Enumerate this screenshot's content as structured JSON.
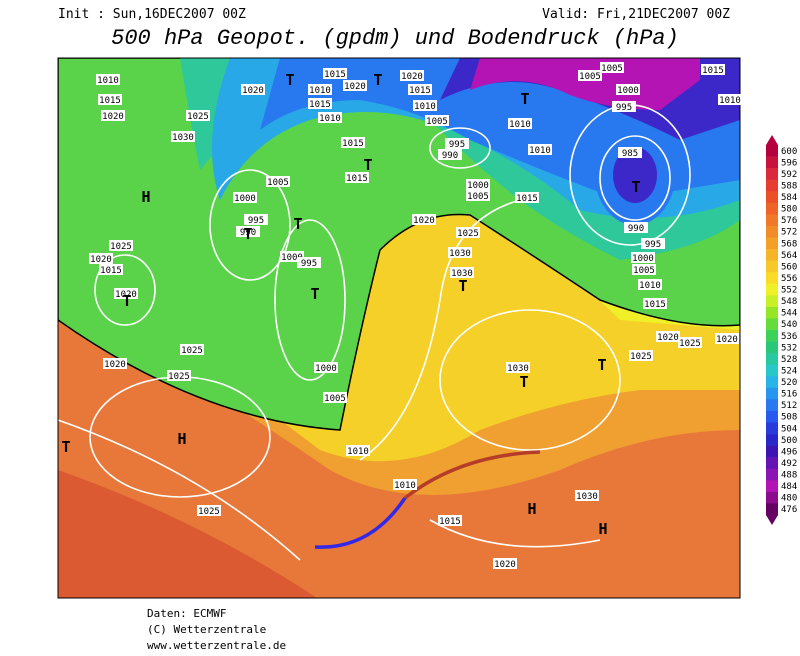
{
  "header": {
    "init": "Init : Sun,16DEC2007 00Z",
    "valid": "Valid: Fri,21DEC2007 00Z",
    "title": "500 hPa Geopot. (gpdm) und Bodendruck (hPa)"
  },
  "legend": {
    "levels": [
      600,
      596,
      592,
      588,
      584,
      580,
      576,
      572,
      568,
      564,
      560,
      556,
      552,
      548,
      544,
      540,
      536,
      532,
      528,
      524,
      520,
      516,
      512,
      508,
      504,
      500,
      496,
      492,
      488,
      484,
      480,
      476
    ],
    "colors": [
      "#b4003c",
      "#c8143c",
      "#dc283c",
      "#e63c32",
      "#eb5028",
      "#ee6428",
      "#f07828",
      "#f28c28",
      "#f4a028",
      "#f6b428",
      "#f8c828",
      "#fadc28",
      "#f0f028",
      "#c8f028",
      "#96e628",
      "#64dc3c",
      "#3cd25a",
      "#28c878",
      "#28c8a0",
      "#28c8c8",
      "#28b4e6",
      "#2896f0",
      "#2878f0",
      "#285af0",
      "#283cdc",
      "#2828c8",
      "#3c14b4",
      "#6414b4",
      "#8c14b4",
      "#b414b4",
      "#8c0a8c",
      "#640064"
    ]
  },
  "isobars": [
    1010,
    1015,
    1020,
    1020,
    1025,
    1030,
    1015,
    1010,
    1020,
    1015,
    1010,
    1020,
    1015,
    1010,
    1005,
    995,
    990,
    1015,
    1015,
    1005,
    1000,
    995,
    990,
    1000,
    1010,
    1000,
    1005,
    1015,
    1005,
    1005,
    1000,
    995,
    985,
    990,
    995,
    1000,
    1005,
    1010,
    1015,
    1010,
    1015,
    1010,
    1025,
    1020,
    1015,
    1020,
    1025,
    1030,
    1030,
    1025,
    1020,
    1025,
    1000,
    1005,
    1010,
    1030,
    1020,
    1025,
    1025,
    1020,
    1010,
    1015,
    1030,
    1020,
    1025,
    995,
    1020
  ],
  "centers": [
    "T",
    "T",
    "T",
    "T",
    "T",
    "T",
    "T",
    "T",
    "T",
    "T",
    "T",
    "T",
    "T",
    "H",
    "H",
    "H",
    "H"
  ],
  "footer": [
    "Daten: ECMWF",
    "(C) Wetterzentrale",
    "www.wetterzentrale.de"
  ]
}
